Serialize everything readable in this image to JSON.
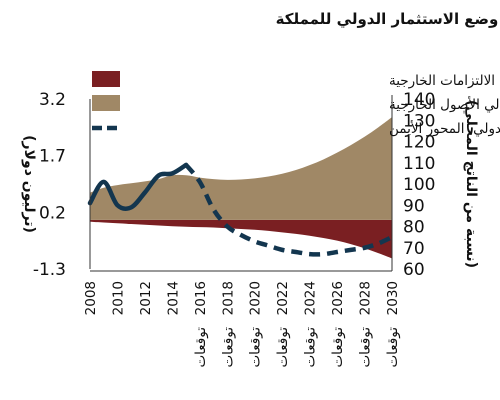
{
  "chart_data": {
    "type": "area",
    "title": "وضع الاستثمار الدولي للمملكة",
    "x": [
      "2008",
      "2009",
      "2010",
      "2011",
      "2012",
      "2013",
      "2014",
      "2015",
      "2016",
      "2017",
      "2018",
      "2019",
      "2020",
      "2021",
      "2022",
      "2023",
      "2024",
      "2025",
      "2026",
      "2027",
      "2028",
      "2029",
      "2030"
    ],
    "x_tick_labels": [
      "2008",
      "2010",
      "2012",
      "2014",
      "2016",
      "توقعات",
      "2018",
      "توقعات",
      "2020",
      "توقعات",
      "2022",
      "توقعات",
      "2024",
      "توقعات",
      "2026",
      "توقعات",
      "2028",
      "توقعات",
      "2030",
      "توقعات"
    ],
    "x_ticks": [
      {
        "year": "2008",
        "note": ""
      },
      {
        "year": "2010",
        "note": ""
      },
      {
        "year": "2012",
        "note": ""
      },
      {
        "year": "2014",
        "note": ""
      },
      {
        "year": "2016",
        "note": "توقعات"
      },
      {
        "year": "2018",
        "note": "توقعات"
      },
      {
        "year": "2020",
        "note": "توقعات"
      },
      {
        "year": "2022",
        "note": "توقعات"
      },
      {
        "year": "2024",
        "note": "توقعات"
      },
      {
        "year": "2026",
        "note": "توقعات"
      },
      {
        "year": "2028",
        "note": "توقعات"
      },
      {
        "year": "2030",
        "note": "توقعات"
      }
    ],
    "left_axis": {
      "label": "(ترليون دولار)",
      "ylim": [
        -1.3,
        3.2
      ],
      "ticks": [
        3.2,
        1.7,
        0.2,
        -1.3
      ]
    },
    "right_axis": {
      "label": "(نسبة من الناتج المحلي)",
      "ylim": [
        60,
        140
      ],
      "ticks": [
        140,
        130,
        120,
        110,
        100,
        90,
        80,
        70,
        60
      ]
    },
    "forecast_start": "2015",
    "series": [
      {
        "name": "إجمالي الالتزامات الخارجية",
        "axis": "left",
        "kind": "area",
        "color": "#7a1f22",
        "values": [
          -0.05,
          -0.07,
          -0.09,
          -0.11,
          -0.13,
          -0.15,
          -0.17,
          -0.18,
          -0.19,
          -0.2,
          -0.22,
          -0.24,
          -0.26,
          -0.29,
          -0.33,
          -0.37,
          -0.42,
          -0.48,
          -0.55,
          -0.64,
          -0.75,
          -0.88,
          -1.02
        ]
      },
      {
        "name": "إجمالي الأصول الخارجية",
        "axis": "left",
        "kind": "area",
        "color": "#a08866",
        "values": [
          0.72,
          0.85,
          0.92,
          0.97,
          1.02,
          1.08,
          1.18,
          1.18,
          1.12,
          1.08,
          1.06,
          1.07,
          1.1,
          1.15,
          1.22,
          1.32,
          1.45,
          1.6,
          1.78,
          1.98,
          2.2,
          2.45,
          2.72
        ]
      },
      {
        "name": "وضع الاستثمار الدولي، المحور الأيمن",
        "axis": "right",
        "kind": "line",
        "color": "#13364f",
        "values": [
          91,
          101,
          90,
          89,
          96,
          104,
          105,
          109,
          101,
          88,
          80,
          76,
          73,
          71,
          69,
          68,
          67,
          67,
          68,
          69,
          70,
          72,
          75
        ]
      }
    ],
    "legend_position": "top-left",
    "grid": false
  }
}
